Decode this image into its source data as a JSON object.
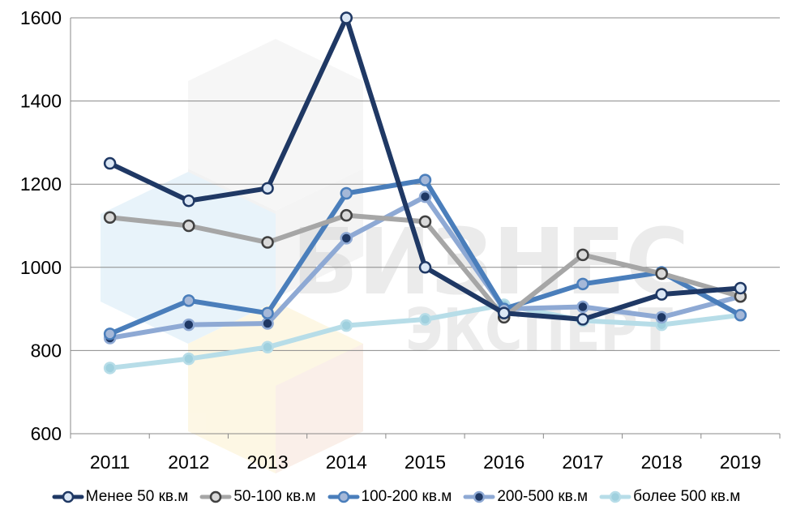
{
  "watermark": {
    "line1": "БИЗНЕС",
    "line2": "ЭКСПЕРТ",
    "logo": "hexagon-cube-logo"
  },
  "chart_data": {
    "type": "line",
    "title": "",
    "xlabel": "",
    "ylabel": "",
    "categories": [
      "2011",
      "2012",
      "2013",
      "2014",
      "2015",
      "2016",
      "2017",
      "2018",
      "2019"
    ],
    "ylim": [
      600,
      1600
    ],
    "yticks": [
      600,
      800,
      1000,
      1200,
      1400,
      1600
    ],
    "grid": true,
    "legend_position": "bottom",
    "series": [
      {
        "name": "Менее 50 кв.м",
        "color": "#1f3864",
        "marker_fill": "#dbe7f5",
        "values": [
          1250,
          1160,
          1190,
          1600,
          1000,
          890,
          875,
          935,
          950
        ]
      },
      {
        "name": "50-100 кв.м",
        "color": "#a6a6a6",
        "marker_fill": "#d9d9d9",
        "marker_stroke": "#404040",
        "values": [
          1120,
          1100,
          1060,
          1125,
          1110,
          880,
          1030,
          985,
          930
        ]
      },
      {
        "name": "100-200 кв.м",
        "color": "#4a7ebb",
        "marker_fill": "#a5b8d8",
        "values": [
          840,
          920,
          890,
          1178,
          1210,
          900,
          960,
          988,
          885
        ]
      },
      {
        "name": "200-500 кв.м",
        "color": "#8ea9d4",
        "marker_fill": "#1f3864",
        "values": [
          830,
          862,
          865,
          1070,
          1170,
          900,
          905,
          880,
          930
        ]
      },
      {
        "name": "более 500 кв.м",
        "color": "#b7dde8",
        "marker_fill": "#9fd0de",
        "values": [
          758,
          780,
          808,
          860,
          875,
          910,
          872,
          862,
          885
        ]
      }
    ]
  }
}
